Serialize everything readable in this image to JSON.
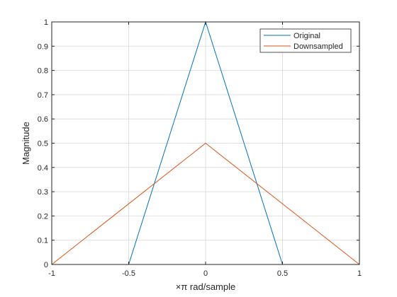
{
  "chart_data": {
    "type": "line",
    "xlabel": "×π  rad/sample",
    "ylabel": "Magnitude",
    "xlim": [
      -1,
      1
    ],
    "ylim": [
      0,
      1
    ],
    "x_ticks": [
      "-1",
      "-0.5",
      "0",
      "0.5",
      "1"
    ],
    "x_tick_values": [
      -1,
      -0.5,
      0,
      0.5,
      1
    ],
    "y_ticks": [
      "0",
      "0.1",
      "0.2",
      "0.3",
      "0.4",
      "0.5",
      "0.6",
      "0.7",
      "0.8",
      "0.9",
      "1"
    ],
    "y_tick_values": [
      0,
      0.1,
      0.2,
      0.3,
      0.4,
      0.5,
      0.6,
      0.7,
      0.8,
      0.9,
      1
    ],
    "grid": true,
    "legend_position": "top-right",
    "series": [
      {
        "name": "Original",
        "color": "#0072BD",
        "x": [
          -1,
          -0.5,
          0,
          0.5,
          1
        ],
        "y": [
          0,
          0,
          1,
          0,
          0
        ]
      },
      {
        "name": "Downsampled",
        "color": "#D95319",
        "x": [
          -1,
          0,
          1
        ],
        "y": [
          0,
          0.5,
          0
        ]
      }
    ]
  }
}
